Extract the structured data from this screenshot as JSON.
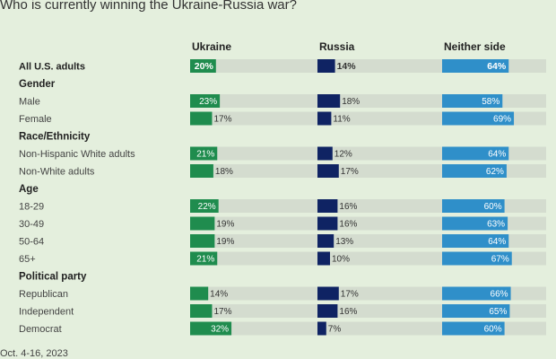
{
  "title": "Who is currently winning the Ukraine-Russia war?",
  "footnote": "Oct. 4-16, 2023",
  "colors": {
    "background": "#e4efdd",
    "track": "#d4dccf",
    "ukraine": "#1f8c4e",
    "russia": "#0f2363",
    "neither": "#2f8fc9"
  },
  "chart_data": {
    "type": "bar",
    "title": "Who is currently winning the Ukraine-Russia war?",
    "xlim": [
      0,
      100
    ],
    "unit": "%",
    "grid": false,
    "series": [
      {
        "name": "Ukraine",
        "color": "#1f8c4e"
      },
      {
        "name": "Russia",
        "color": "#0f2363"
      },
      {
        "name": "Neither side",
        "color": "#2f8fc9"
      }
    ],
    "rows": [
      {
        "kind": "data",
        "label": "All U.S. adults",
        "bold": true,
        "values": [
          20,
          14,
          64
        ]
      },
      {
        "kind": "group",
        "label": "Gender"
      },
      {
        "kind": "data",
        "label": "Male",
        "values": [
          23,
          18,
          58
        ]
      },
      {
        "kind": "data",
        "label": "Female",
        "values": [
          17,
          11,
          69
        ]
      },
      {
        "kind": "group",
        "label": "Race/Ethnicity"
      },
      {
        "kind": "data",
        "label": "Non-Hispanic White adults",
        "values": [
          21,
          12,
          64
        ]
      },
      {
        "kind": "data",
        "label": "Non-White adults",
        "values": [
          18,
          17,
          62
        ]
      },
      {
        "kind": "group",
        "label": "Age"
      },
      {
        "kind": "data",
        "label": "18-29",
        "values": [
          22,
          16,
          60
        ]
      },
      {
        "kind": "data",
        "label": "30-49",
        "values": [
          19,
          16,
          63
        ]
      },
      {
        "kind": "data",
        "label": "50-64",
        "values": [
          19,
          13,
          64
        ]
      },
      {
        "kind": "data",
        "label": "65+",
        "values": [
          21,
          10,
          67
        ]
      },
      {
        "kind": "group",
        "label": "Political party"
      },
      {
        "kind": "data",
        "label": "Republican",
        "values": [
          14,
          17,
          66
        ]
      },
      {
        "kind": "data",
        "label": "Independent",
        "values": [
          17,
          16,
          65
        ]
      },
      {
        "kind": "data",
        "label": "Democrat",
        "values": [
          32,
          7,
          60
        ]
      }
    ]
  }
}
